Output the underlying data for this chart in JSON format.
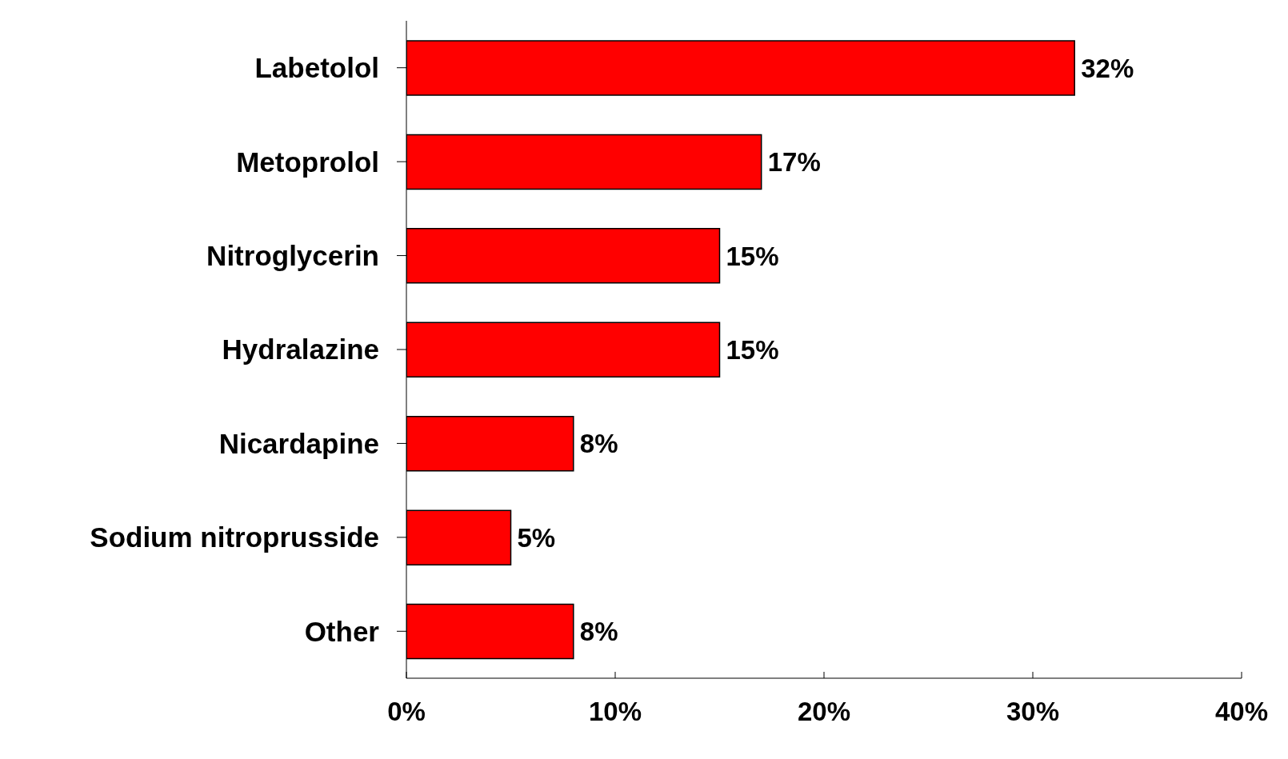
{
  "chart_data": {
    "type": "bar",
    "orientation": "horizontal",
    "categories": [
      "Labetolol",
      "Metoprolol",
      "Nitroglycerin",
      "Hydralazine",
      "Nicardapine",
      "Sodium nitroprusside",
      "Other"
    ],
    "values": [
      32,
      17,
      15,
      15,
      8,
      5,
      8
    ],
    "value_labels": [
      "32%",
      "17%",
      "15%",
      "15%",
      "8%",
      "5%",
      "8%"
    ],
    "color": "#ff0000",
    "xlim": [
      0,
      40
    ],
    "xticks": [
      {
        "value": 0,
        "label": "0%"
      },
      {
        "value": 10,
        "label": "10%"
      },
      {
        "value": 20,
        "label": "20%"
      },
      {
        "value": 30,
        "label": "30%"
      },
      {
        "value": 40,
        "label": "40%"
      }
    ],
    "grid": false,
    "legend": false
  }
}
